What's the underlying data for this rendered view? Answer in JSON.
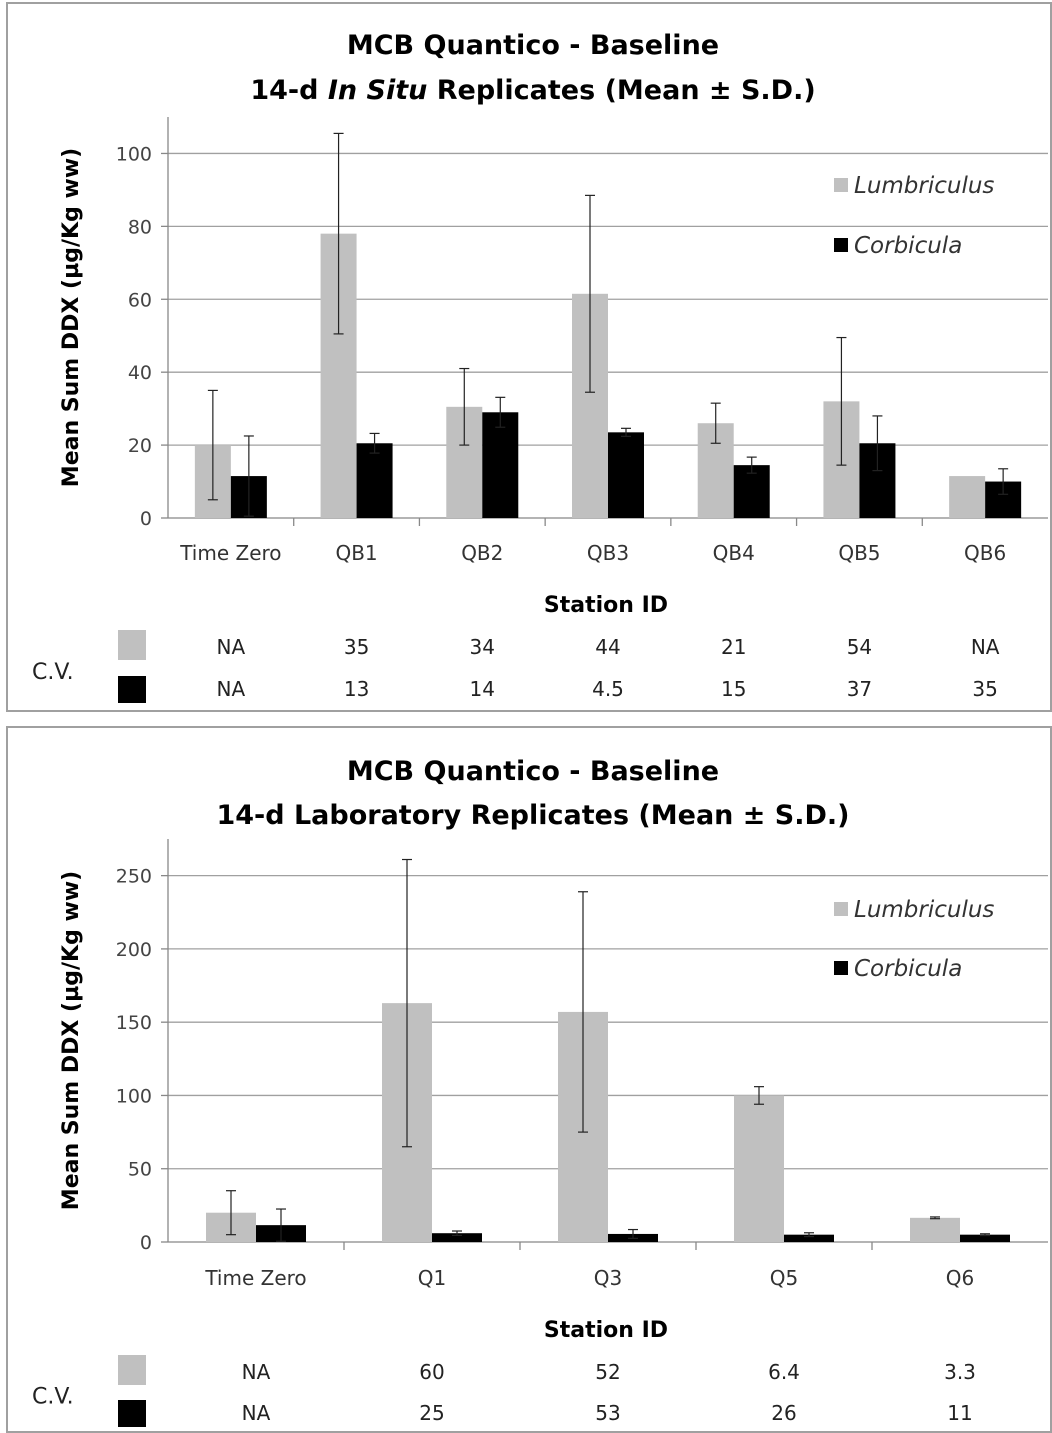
{
  "chart_data": [
    {
      "type": "bar",
      "title_line1": "MCB Quantico - Baseline",
      "title_line2_pre": "14-d ",
      "title_line2_italic": "In Situ",
      "title_line2_post": " Replicates (Mean ± S.D.)",
      "xlabel": "Station ID",
      "ylabel": "Mean Sum DDX (µg/Kg ww)",
      "ylim": [
        0,
        110
      ],
      "yticks": [
        0,
        20,
        40,
        60,
        80,
        100
      ],
      "grid": true,
      "legend_position": "top-right",
      "categories": [
        "Time Zero",
        "QB1",
        "QB2",
        "QB3",
        "QB4",
        "QB5",
        "QB6"
      ],
      "series": [
        {
          "name": "Lumbriculus",
          "color": "#c0c0c0",
          "values": [
            20,
            78,
            30.5,
            61.5,
            26,
            32,
            11.5
          ],
          "sd": [
            15,
            27.5,
            10.5,
            27,
            5.5,
            17.5,
            0
          ]
        },
        {
          "name": "Corbicula",
          "color": "#000000",
          "values": [
            11.5,
            20.5,
            29,
            23.5,
            14.5,
            20.5,
            10
          ],
          "sd": [
            11,
            2.7,
            4.1,
            1.1,
            2.2,
            7.5,
            3.5
          ]
        }
      ],
      "cv_label": "C.V.",
      "cv_rows": [
        [
          "NA",
          "35",
          "34",
          "44",
          "21",
          "54",
          "NA"
        ],
        [
          "NA",
          "13",
          "14",
          "4.5",
          "15",
          "37",
          "35"
        ]
      ]
    },
    {
      "type": "bar",
      "title_line1": "MCB Quantico - Baseline",
      "title_line2_pre": "14-d Laboratory Replicates (Mean ± S.D.)",
      "title_line2_italic": "",
      "title_line2_post": "",
      "xlabel": "Station ID",
      "ylabel": "Mean Sum DDX (µg/Kg ww)",
      "ylim": [
        0,
        275
      ],
      "yticks": [
        0,
        50,
        100,
        150,
        200,
        250
      ],
      "grid": true,
      "legend_position": "top-right",
      "categories": [
        "Time Zero",
        "Q1",
        "Q3",
        "Q5",
        "Q6"
      ],
      "series": [
        {
          "name": "Lumbriculus",
          "color": "#c0c0c0",
          "values": [
            20,
            163,
            157,
            100,
            16.5
          ],
          "sd": [
            15,
            98,
            82,
            6,
            0.6
          ]
        },
        {
          "name": "Corbicula",
          "color": "#000000",
          "values": [
            11.5,
            6,
            5.5,
            5,
            5
          ],
          "sd": [
            11,
            1.5,
            3,
            1.3,
            0.6
          ]
        }
      ],
      "cv_label": "C.V.",
      "cv_rows": [
        [
          "NA",
          "60",
          "52",
          "6.4",
          "3.3"
        ],
        [
          "NA",
          "25",
          "53",
          "26",
          "11"
        ]
      ]
    }
  ]
}
